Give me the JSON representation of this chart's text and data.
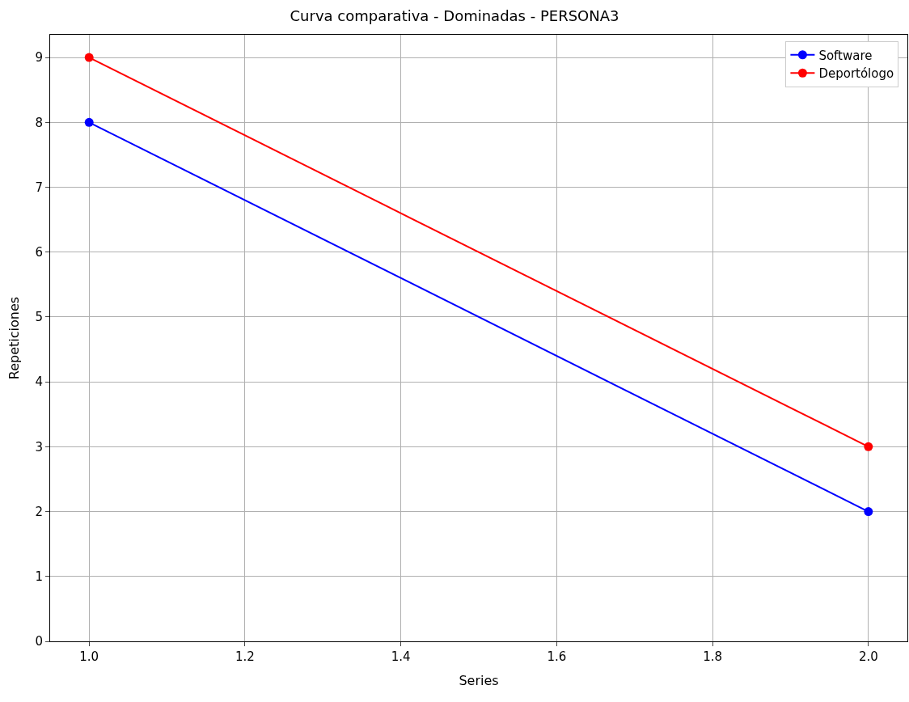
{
  "chart_data": {
    "type": "line",
    "title": "Curva comparativa - Dominadas - PERSONA3",
    "xlabel": "Series",
    "ylabel": "Repeticiones",
    "x": [
      1,
      2
    ],
    "series": [
      {
        "name": "Software",
        "color": "#0000ff",
        "values": [
          8,
          2
        ]
      },
      {
        "name": "Deportólogo",
        "color": "#ff0000",
        "values": [
          9,
          3
        ]
      }
    ],
    "xlim": [
      0.95,
      2.05
    ],
    "ylim": [
      0,
      9.35
    ],
    "xticks": [
      {
        "value": 1,
        "label": "1.0"
      },
      {
        "value": 1.2,
        "label": "1.2"
      },
      {
        "value": 1.4,
        "label": "1.4"
      },
      {
        "value": 1.6,
        "label": "1.6"
      },
      {
        "value": 1.8,
        "label": "1.8"
      },
      {
        "value": 2,
        "label": "2.0"
      }
    ],
    "yticks": [
      0,
      1,
      2,
      3,
      4,
      5,
      6,
      7,
      8,
      9
    ],
    "grid": true,
    "legend": "top right",
    "marker": "circle",
    "line_style": "solid"
  }
}
